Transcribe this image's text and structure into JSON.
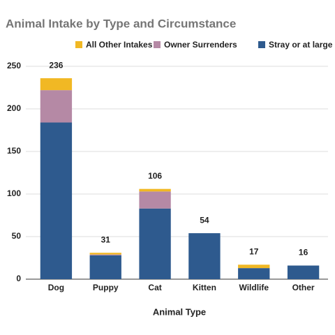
{
  "chart_data": {
    "type": "stacked-bar",
    "title": "Animal Intake by Type and Circumstance",
    "x_label": "Animal Type",
    "categories": [
      "Dog",
      "Puppy",
      "Cat",
      "Kitten",
      "Wildlife",
      "Other"
    ],
    "series": [
      {
        "name": "All Other Intakes",
        "color": "#f1b824",
        "values": [
          14,
          2,
          3,
          0,
          4,
          0
        ]
      },
      {
        "name": "Owner Surrenders",
        "color": "#b589a5",
        "values": [
          38,
          1,
          20,
          0,
          0,
          0
        ]
      },
      {
        "name": "Stray or at large",
        "color": "#2e5a8e",
        "values": [
          184,
          28,
          83,
          54,
          13,
          16
        ]
      }
    ],
    "totals": [
      236,
      31,
      106,
      54,
      17,
      16
    ],
    "ylim": [
      0,
      250
    ],
    "yticks": [
      0,
      50,
      100,
      150,
      200,
      250
    ],
    "grid": true,
    "legend": "top"
  }
}
